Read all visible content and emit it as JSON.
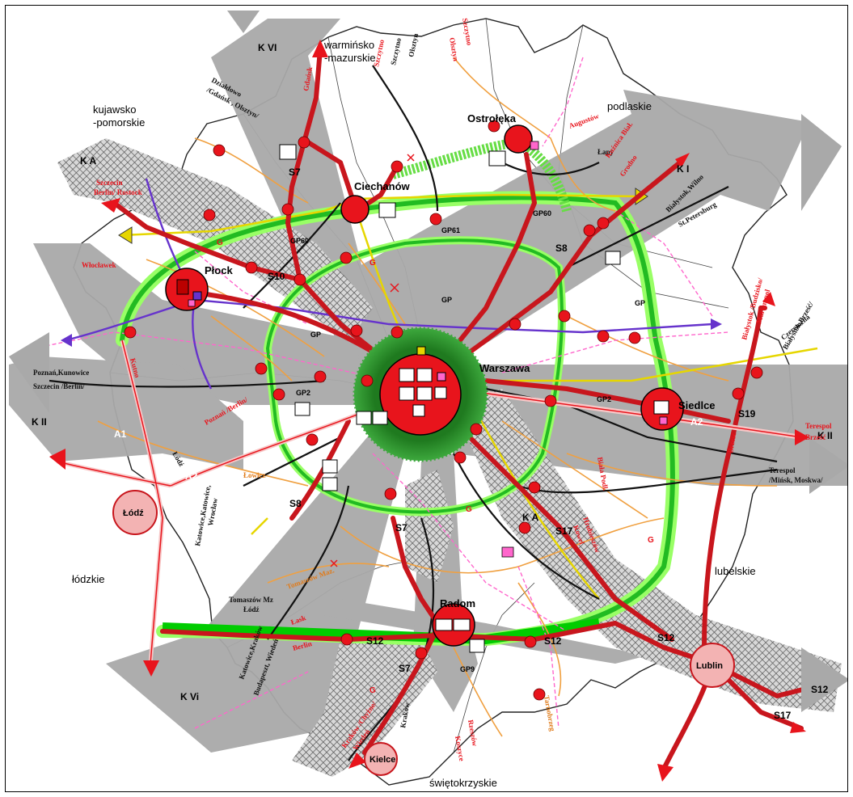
{
  "colors": {
    "corridor": "#a9a9a9",
    "expressway": "#c8161d",
    "ring_green": "#33cc33",
    "ring_light": "#99ff66",
    "node": "#e8141c",
    "branch_orange": "#f0a040",
    "railway_purple": "#6633cc",
    "yellow_line": "#e6d600",
    "pink_line": "#ff66cc"
  },
  "corridors": {
    "k_vi_top": "K VI",
    "k_a_left": "K A",
    "k_i": "K I",
    "k_ii_left": "K II",
    "k_ii_right": "K II",
    "k_vi_bottom": "K Vi",
    "k_a_mid": "K A"
  },
  "regions": {
    "warminsko": "warmińsko\n-mazurskie",
    "kujawsko": "kujawsko\n-pomorskie",
    "podlaskie": "podlaskie",
    "lodzkie": "łódzkie",
    "lubelskie": "lubelskie",
    "swietokrzyskie": "świętokrzyskie"
  },
  "cities": {
    "warszawa": "Warszawa",
    "plock": "Płock",
    "ciechanow": "Ciechanów",
    "ostroleka": "Ostrołęka",
    "siedlce": "Siedlce",
    "radom": "Radom",
    "lodz": "Łódź",
    "lublin": "Lublin",
    "kielce": "Kielce"
  },
  "roads": {
    "s7_north": "S7",
    "s7_south": "S7",
    "s7_bottom": "S7",
    "s8_ne": "S8",
    "s8_sw": "S8",
    "s10": "S10",
    "s12_west": "S12",
    "s12_mid": "S12",
    "s12_east": "S12",
    "s12_far": "S12",
    "s17_mid": "S17",
    "s17_far": "S17",
    "s19": "S19",
    "a1": "A1",
    "a2_west": "A2",
    "a2_east": "A2"
  },
  "ring_labels": {
    "gp60_w": "GP60",
    "gp60_e": "GP60",
    "gp61": "GP61",
    "gp_n": "GP",
    "gp_w": "GP",
    "gp_e": "GP",
    "gp2_w": "GP2",
    "gp2_e": "GP2",
    "gp9": "GP9",
    "g_1": "G",
    "g_2": "G",
    "g_3": "G",
    "g_4": "G",
    "g_5": "G"
  },
  "destinations": {
    "gdansk": "Gdańsk",
    "dzialdowo": "Działdowo",
    "gdansk_olsztyn": "/Gdańsk , Olsztyn/",
    "szczytno_top": "Szczytno",
    "olsztyn": "Olsztyn",
    "szczytno": "Szczytno",
    "szczytno2": "Szczytno",
    "olsztyn2": "Olsztyn",
    "augustow": "Augustów",
    "lapy": "Łapy",
    "kuznica": "Kuźnica Biał.",
    "grodno": "Grodno",
    "bialystok_wilno": "Białystok,Wilno",
    "st_petersburg": "St.Petersburg",
    "szczecin_berlin": "Szczecin",
    "berlin_rostock": "Berlin/ Rostock",
    "wloclawek": "Włocławek",
    "kutno": "Kutno",
    "poznan_kunowice": "Poznań,Kunowice",
    "szczecin_berlin2": "Szczecin /Berlin/",
    "poznan_berlin": "Poznań /Berlin/",
    "lodz_small": "Łódź",
    "lowicz": "Łowicz",
    "katowice_wroclaw": "Katowice,Katowice,",
    "wroclaw": "Wrocław",
    "bialystok_budzisko": "Białystok /Budzisko/",
    "mariampol": "Mariampol",
    "czeremcha": "Czeremcha",
    "bialystok_brzesc": "Białystok,Brześć/",
    "terespol_brzesc": "Terespol",
    "brzesc": "Brześć",
    "terespol_minsk": "Terespol",
    "minsk": "/Mińsk, Moskwa/",
    "biala_podl": "Biała Podl.",
    "brzesc2": "Brześć",
    "hrubieszow": "Hrubieszów",
    "kowel": "Kowel",
    "tomaszow_maz": "Tomaszów Maz.",
    "tomaszow_lodz1": "Tomaszów Mz",
    "tomaszow_lodz2": "Łódź",
    "lask": "Łask",
    "katowice_krakow": "Katowice,Kraków",
    "budapeszt": "Budapeszt, Wiedeń",
    "berlin_s": "Berlin",
    "krakow": "Kraków",
    "krakow_chyzne": "Kraków /Chyżne/",
    "wieden": "Wiedeń",
    "rzeszow": "Rzeszów",
    "koszyce": "Koszyce",
    "tarnobrzeg": "Tarnobrzeg"
  }
}
